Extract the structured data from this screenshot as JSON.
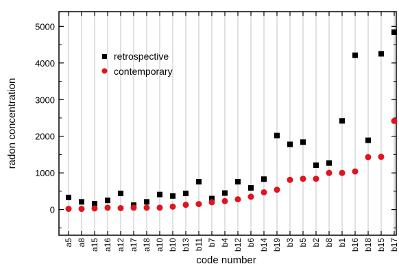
{
  "chart_data": {
    "type": "scatter",
    "title": "",
    "xlabel": "code number",
    "ylabel": "radon concentration",
    "ylim": [
      -700,
      5400
    ],
    "yticks": [
      0,
      1000,
      2000,
      3000,
      4000,
      5000
    ],
    "grid": "vertical",
    "legend_position": "upper-left",
    "categories": [
      "a5",
      "a8",
      "a15",
      "a16",
      "a12",
      "a17",
      "a18",
      "a10",
      "b10",
      "b13",
      "b11",
      "b7",
      "b4",
      "b12",
      "b6",
      "b14",
      "b19",
      "b3",
      "b5",
      "b2",
      "b8",
      "b1",
      "b16",
      "b18",
      "b15",
      "b17"
    ],
    "series": [
      {
        "name": "retrospective",
        "marker": "square",
        "color": "#000000",
        "values": [
          330,
          210,
          160,
          250,
          440,
          120,
          210,
          410,
          370,
          440,
          760,
          300,
          450,
          760,
          590,
          830,
          2020,
          1780,
          1840,
          1210,
          1270,
          2420,
          4210,
          1890,
          4250,
          4840
        ]
      },
      {
        "name": "contemporary",
        "marker": "circle",
        "color": "#e0141e",
        "values": [
          20,
          20,
          30,
          50,
          40,
          50,
          50,
          50,
          80,
          130,
          150,
          200,
          230,
          280,
          350,
          470,
          540,
          810,
          840,
          840,
          1000,
          1000,
          1040,
          1430,
          1440,
          2420
        ]
      }
    ]
  }
}
